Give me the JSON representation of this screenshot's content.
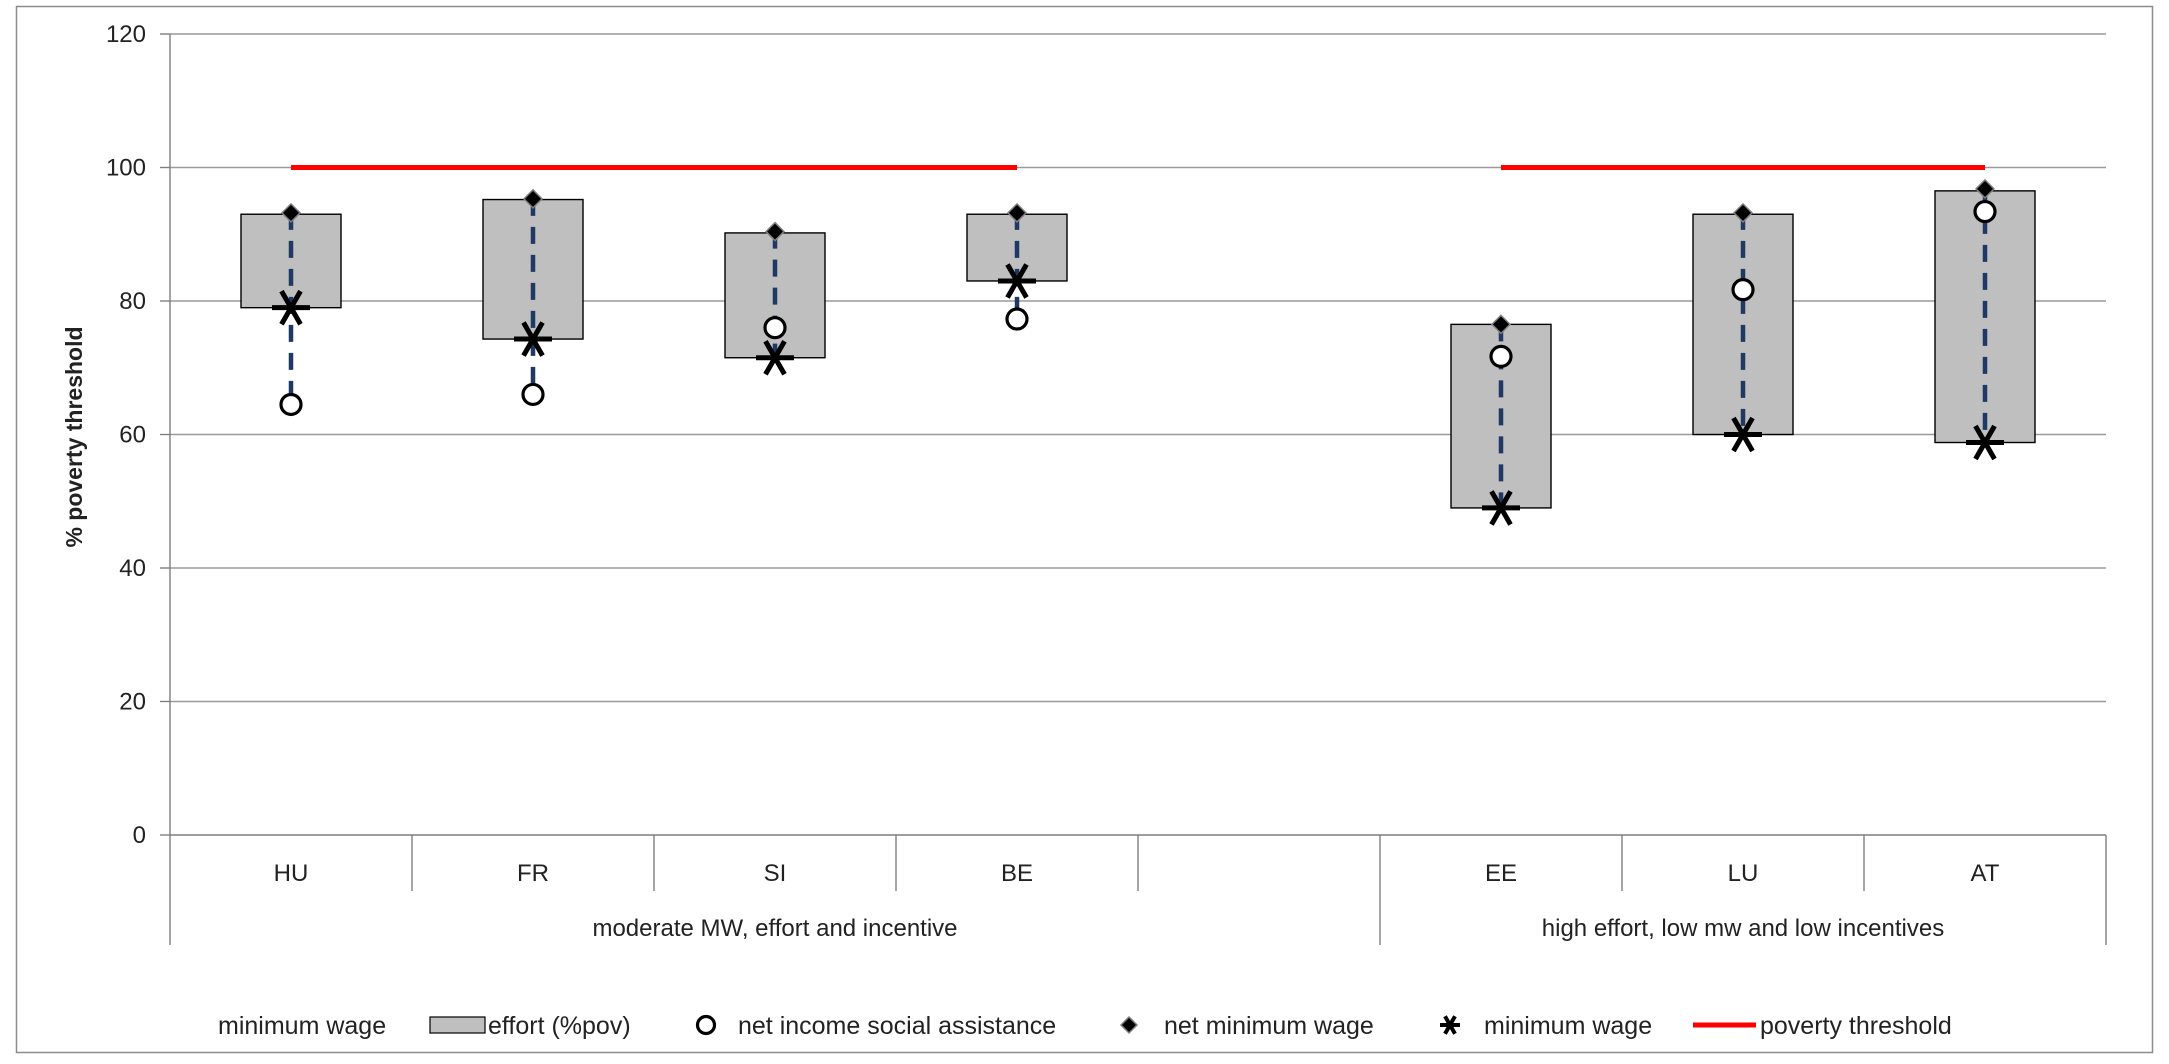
{
  "chart_data": {
    "type": "box-range",
    "ylabel": "% poverty threshold",
    "ylim": [
      0,
      120
    ],
    "yticks": [
      0,
      20,
      40,
      60,
      80,
      100,
      120
    ],
    "grid": true,
    "legend_position": "bottom",
    "slots": [
      "HU",
      "FR",
      "SI",
      "BE",
      "",
      "EE",
      "LU",
      "AT"
    ],
    "groups": [
      {
        "label": "moderate MW, effort and incentive",
        "start": 0,
        "span": 5
      },
      {
        "label": "high effort, low mw and low incentives",
        "start": 5,
        "span": 3
      }
    ],
    "countries": [
      {
        "code": "HU",
        "slot": 0,
        "effort_low": 79,
        "effort_high": 93,
        "net_income_social_assistance": 64.5,
        "net_minimum_wage": 93.2,
        "minimum_wage": 79
      },
      {
        "code": "FR",
        "slot": 1,
        "effort_low": 74.3,
        "effort_high": 95.2,
        "net_income_social_assistance": 66,
        "net_minimum_wage": 95.3,
        "minimum_wage": 74.3
      },
      {
        "code": "SI",
        "slot": 2,
        "effort_low": 71.5,
        "effort_high": 90.2,
        "net_income_social_assistance": 76,
        "net_minimum_wage": 90.4,
        "minimum_wage": 71.5
      },
      {
        "code": "BE",
        "slot": 3,
        "effort_low": 83,
        "effort_high": 93,
        "net_income_social_assistance": 77.3,
        "net_minimum_wage": 93.2,
        "minimum_wage": 83
      },
      {
        "code": "EE",
        "slot": 5,
        "effort_low": 49,
        "effort_high": 76.5,
        "net_income_social_assistance": 71.7,
        "net_minimum_wage": 76.5,
        "minimum_wage": 49
      },
      {
        "code": "LU",
        "slot": 6,
        "effort_low": 60,
        "effort_high": 93,
        "net_income_social_assistance": 81.7,
        "net_minimum_wage": 93.2,
        "minimum_wage": 60
      },
      {
        "code": "AT",
        "slot": 7,
        "effort_low": 58.8,
        "effort_high": 96.5,
        "net_income_social_assistance": 93.4,
        "net_minimum_wage": 96.8,
        "minimum_wage": 58.8
      }
    ],
    "poverty_threshold": [
      {
        "value": 100,
        "slot_from": 0,
        "slot_to": 3
      },
      {
        "value": 100,
        "slot_from": 5,
        "slot_to": 7
      }
    ],
    "legend": [
      {
        "key": "mw_line",
        "label": "minimum wage"
      },
      {
        "key": "effort",
        "label": "effort (%pov)"
      },
      {
        "key": "nisa",
        "label": "net income social assistance"
      },
      {
        "key": "nmw",
        "label": "net minimum wage"
      },
      {
        "key": "mw",
        "label": "minimum wage"
      },
      {
        "key": "pov",
        "label": "poverty threshold"
      }
    ],
    "colors": {
      "box_fill": "#bfbfbf",
      "box_stroke": "#000000",
      "dash_line": "#1f3864",
      "poverty_line": "#ff0000",
      "grid": "#9a9a9a",
      "marker": "#000000"
    }
  }
}
